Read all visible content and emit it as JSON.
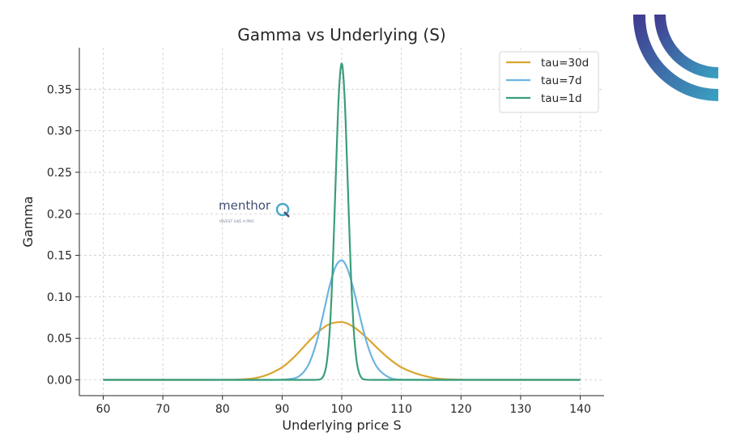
{
  "chart_data": {
    "type": "line",
    "title": "Gamma vs Underlying (S)",
    "xlabel": "Underlying price S",
    "ylabel": "Gamma",
    "xlim": [
      56,
      144
    ],
    "ylim": [
      -0.019,
      0.4
    ],
    "xticks": [
      60,
      70,
      80,
      90,
      100,
      110,
      120,
      130,
      140
    ],
    "yticks": [
      0.0,
      0.05,
      0.1,
      0.15,
      0.2,
      0.25,
      0.3,
      0.35
    ],
    "ytick_labels": [
      "0.00",
      "0.05",
      "0.10",
      "0.15",
      "0.20",
      "0.25",
      "0.30",
      "0.35"
    ],
    "grid": true,
    "legend_position": "top-right",
    "series": [
      {
        "name": "tau=30d",
        "color": "#daa52f",
        "x": [
          60,
          70,
          75,
          80,
          85,
          90,
          92,
          94,
          96,
          98,
          100,
          102,
          104,
          106,
          108,
          110,
          115,
          120,
          125,
          130,
          140
        ],
        "y": [
          0,
          0,
          0,
          5e-05,
          0.0016,
          0.0151,
          0.0274,
          0.0426,
          0.0574,
          0.0674,
          0.0696,
          0.0636,
          0.0519,
          0.0381,
          0.0252,
          0.0151,
          0.0029,
          0.0003,
          0,
          0,
          0
        ]
      },
      {
        "name": "tau=7d",
        "color": "#6cb4e0",
        "x": [
          60,
          80,
          88,
          92,
          94,
          95,
          96,
          97,
          98,
          99,
          100,
          101,
          102,
          103,
          104,
          105,
          106,
          108,
          110,
          115,
          140
        ],
        "y": [
          0,
          0,
          0,
          0.0018,
          0.013,
          0.028,
          0.0517,
          0.0823,
          0.1138,
          0.1369,
          0.144,
          0.133,
          0.1083,
          0.078,
          0.0497,
          0.0284,
          0.0145,
          0.0027,
          0.0003,
          0,
          0
        ]
      },
      {
        "name": "tau=1d",
        "color": "#3a9e78",
        "x": [
          60,
          90,
          95,
          96,
          97,
          97.5,
          98,
          98.5,
          99,
          99.5,
          100,
          100.5,
          101,
          101.5,
          102,
          102.5,
          103,
          104,
          105,
          110,
          140
        ],
        "y": [
          0,
          0,
          0,
          0.0002,
          0.0058,
          0.0212,
          0.0609,
          0.1375,
          0.2439,
          0.3424,
          0.3811,
          0.3376,
          0.2389,
          0.1355,
          0.0618,
          0.0227,
          0.0068,
          0.0003,
          0,
          0,
          0
        ]
      }
    ]
  },
  "watermark": {
    "brand": "menthor",
    "tagline": "INVEST LIKE A PRO",
    "letter": "Q"
  },
  "logo_colors": [
    "#41398f",
    "#3aa2c2"
  ]
}
